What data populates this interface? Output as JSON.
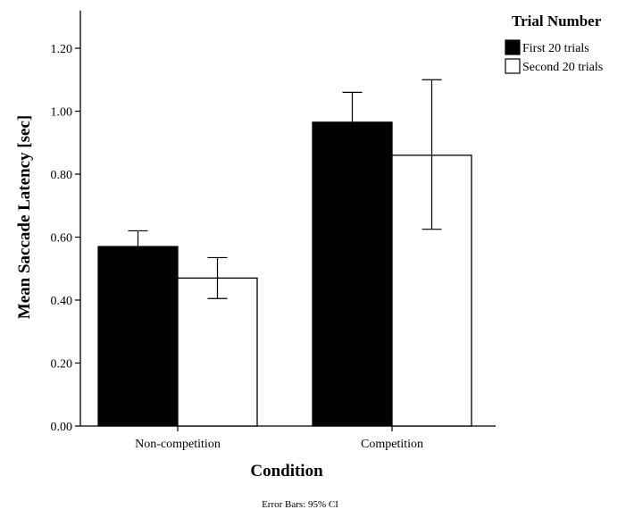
{
  "chart_data": {
    "type": "bar",
    "categories": [
      "Non-competition",
      "Competition"
    ],
    "series": [
      {
        "name": "First 20 trials",
        "color": "#000000",
        "values": [
          0.57,
          0.965
        ],
        "ci_lower": [
          0.515,
          0.87
        ],
        "ci_upper": [
          0.62,
          1.06
        ]
      },
      {
        "name": "Second 20 trials",
        "color": "#ffffff",
        "values": [
          0.47,
          0.86
        ],
        "ci_lower": [
          0.405,
          0.625
        ],
        "ci_upper": [
          0.535,
          1.1
        ]
      }
    ],
    "xlabel": "Condition",
    "ylabel": "Mean Saccade Latency [sec]",
    "ylim": [
      0,
      1.32
    ],
    "yticks": [
      "0.00",
      "0.20",
      "0.40",
      "0.60",
      "0.80",
      "1.00",
      "1.20"
    ],
    "legend": {
      "title": "Trial Number",
      "placement": "top-right"
    },
    "footnote": "Error Bars: 95% CI",
    "grid": false
  }
}
